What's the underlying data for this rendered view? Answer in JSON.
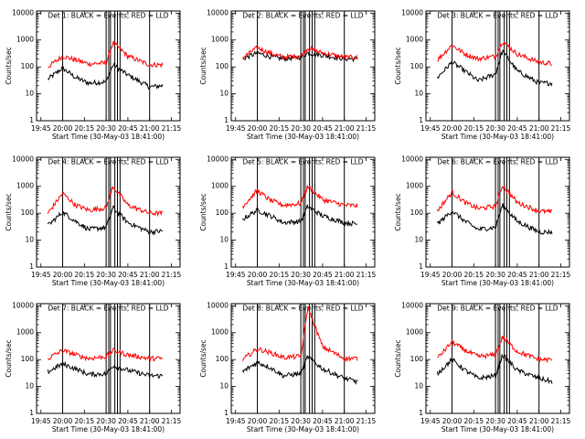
{
  "figure": {
    "xlabel": "Start Time (30-May-03 18:41:00)",
    "ylabel": "Counts/sec",
    "x_tick_labels": [
      "19:45",
      "20:00",
      "20:15",
      "20:30",
      "20:45",
      "21:00",
      "21:15"
    ],
    "y_tick_labels": [
      "1",
      "10",
      "100",
      "1000",
      "10000"
    ]
  },
  "chart_data": [
    {
      "type": "line",
      "title": "Det 1: BLACK = Events, RED = LLD",
      "xlim": [
        19.7,
        21.35
      ],
      "ylim": [
        1,
        12000
      ],
      "yscale": "log",
      "x": [
        19.83,
        20,
        20.15,
        20.3,
        20.5,
        20.58,
        20.75,
        21,
        21.15
      ],
      "series": [
        {
          "name": "Events",
          "color": "#000000",
          "x_start": 19.83,
          "values": [
            35,
            90,
            40,
            25,
            28,
            120,
            50,
            18,
            20
          ]
        },
        {
          "name": "LLD",
          "color": "#ff0000",
          "x_start": 19.83,
          "values": [
            100,
            250,
            180,
            130,
            140,
            800,
            250,
            120,
            120
          ]
        }
      ]
    },
    {
      "type": "line",
      "title": "Det 2: BLACK = Events, RED = LLD",
      "xlim": [
        19.7,
        21.35
      ],
      "ylim": [
        1,
        12000
      ],
      "yscale": "log",
      "x": [
        19.83,
        20,
        20.15,
        20.3,
        20.5,
        20.58,
        20.75,
        21,
        21.15
      ],
      "series": [
        {
          "name": "Events",
          "color": "#000000",
          "x_start": 19.83,
          "values": [
            200,
            330,
            240,
            200,
            230,
            330,
            270,
            200,
            200
          ]
        },
        {
          "name": "LLD",
          "color": "#ff0000",
          "x_start": 19.83,
          "values": [
            220,
            520,
            320,
            230,
            260,
            500,
            330,
            230,
            220
          ]
        }
      ]
    },
    {
      "type": "line",
      "title": "Det 3: BLACK = Events, RED = LLD",
      "xlim": [
        19.7,
        21.35
      ],
      "ylim": [
        1,
        12000
      ],
      "yscale": "log",
      "x": [
        19.83,
        20,
        20.15,
        20.3,
        20.5,
        20.58,
        20.75,
        21,
        21.15
      ],
      "series": [
        {
          "name": "Events",
          "color": "#000000",
          "x_start": 19.83,
          "values": [
            40,
            150,
            70,
            30,
            55,
            400,
            70,
            25,
            25
          ]
        },
        {
          "name": "LLD",
          "color": "#ff0000",
          "x_start": 19.83,
          "values": [
            180,
            650,
            300,
            200,
            250,
            900,
            300,
            150,
            130
          ]
        }
      ]
    },
    {
      "type": "line",
      "title": "Det 4: BLACK = Events, RED = LLD",
      "xlim": [
        19.7,
        21.35
      ],
      "ylim": [
        1,
        12000
      ],
      "yscale": "log",
      "x": [
        19.83,
        20,
        20.15,
        20.3,
        20.5,
        20.58,
        20.75,
        21,
        21.15
      ],
      "series": [
        {
          "name": "Events",
          "color": "#000000",
          "x_start": 19.83,
          "values": [
            35,
            110,
            50,
            25,
            30,
            160,
            45,
            20,
            22
          ]
        },
        {
          "name": "LLD",
          "color": "#ff0000",
          "x_start": 19.83,
          "values": [
            100,
            550,
            200,
            130,
            160,
            1000,
            200,
            100,
            100
          ]
        }
      ]
    },
    {
      "type": "line",
      "title": "Det 5: BLACK = Events, RED = LLD",
      "xlim": [
        19.7,
        21.35
      ],
      "ylim": [
        1,
        12000
      ],
      "yscale": "log",
      "x": [
        19.83,
        20,
        20.15,
        20.3,
        20.5,
        20.58,
        20.75,
        21,
        21.15
      ],
      "series": [
        {
          "name": "Events",
          "color": "#000000",
          "x_start": 19.83,
          "values": [
            60,
            130,
            80,
            45,
            50,
            180,
            80,
            45,
            40
          ]
        },
        {
          "name": "LLD",
          "color": "#ff0000",
          "x_start": 19.83,
          "values": [
            180,
            700,
            300,
            200,
            230,
            1000,
            320,
            200,
            190
          ]
        }
      ]
    },
    {
      "type": "line",
      "title": "Det 6: BLACK = Events, RED = LLD",
      "xlim": [
        19.7,
        21.35
      ],
      "ylim": [
        1,
        12000
      ],
      "yscale": "log",
      "x": [
        19.83,
        20,
        20.15,
        20.3,
        20.5,
        20.58,
        20.75,
        21,
        21.15
      ],
      "series": [
        {
          "name": "Events",
          "color": "#000000",
          "x_start": 19.83,
          "values": [
            40,
            120,
            50,
            25,
            30,
            200,
            50,
            20,
            20
          ]
        },
        {
          "name": "LLD",
          "color": "#ff0000",
          "x_start": 19.83,
          "values": [
            120,
            600,
            250,
            150,
            180,
            1100,
            250,
            120,
            110
          ]
        }
      ]
    },
    {
      "type": "line",
      "title": "Det 7: BLACK = Events, RED = LLD",
      "xlim": [
        19.7,
        21.35
      ],
      "ylim": [
        1,
        12000
      ],
      "yscale": "log",
      "x": [
        19.83,
        20,
        20.15,
        20.3,
        20.5,
        20.58,
        20.75,
        21,
        21.15
      ],
      "series": [
        {
          "name": "Events",
          "color": "#000000",
          "x_start": 19.83,
          "values": [
            35,
            70,
            45,
            28,
            30,
            60,
            40,
            25,
            25
          ]
        },
        {
          "name": "LLD",
          "color": "#ff0000",
          "x_start": 19.83,
          "values": [
            110,
            220,
            150,
            110,
            130,
            220,
            150,
            110,
            110
          ]
        }
      ]
    },
    {
      "type": "line",
      "title": "Det 8: BLACK = Events, RED = LLD",
      "xlim": [
        19.7,
        21.35
      ],
      "ylim": [
        1,
        12000
      ],
      "yscale": "log",
      "x": [
        19.83,
        20,
        20.15,
        20.3,
        20.5,
        20.58,
        20.75,
        21,
        21.15
      ],
      "series": [
        {
          "name": "Events",
          "color": "#000000",
          "x_start": 19.83,
          "values": [
            35,
            80,
            50,
            25,
            30,
            130,
            45,
            20,
            15
          ]
        },
        {
          "name": "LLD",
          "color": "#ff0000",
          "x_start": 19.83,
          "values": [
            100,
            250,
            180,
            120,
            130,
            9000,
            300,
            110,
            110
          ]
        }
      ]
    },
    {
      "type": "line",
      "title": "Det 9: BLACK = Events, RED = LLD",
      "xlim": [
        19.7,
        21.35
      ],
      "ylim": [
        1,
        12000
      ],
      "yscale": "log",
      "x": [
        19.83,
        20,
        20.15,
        20.3,
        20.5,
        20.58,
        20.75,
        21,
        21.15
      ],
      "series": [
        {
          "name": "Events",
          "color": "#000000",
          "x_start": 19.83,
          "values": [
            30,
            100,
            40,
            20,
            25,
            150,
            40,
            20,
            15
          ]
        },
        {
          "name": "LLD",
          "color": "#ff0000",
          "x_start": 19.83,
          "values": [
            110,
            450,
            220,
            130,
            150,
            700,
            200,
            100,
            100
          ]
        }
      ]
    }
  ]
}
